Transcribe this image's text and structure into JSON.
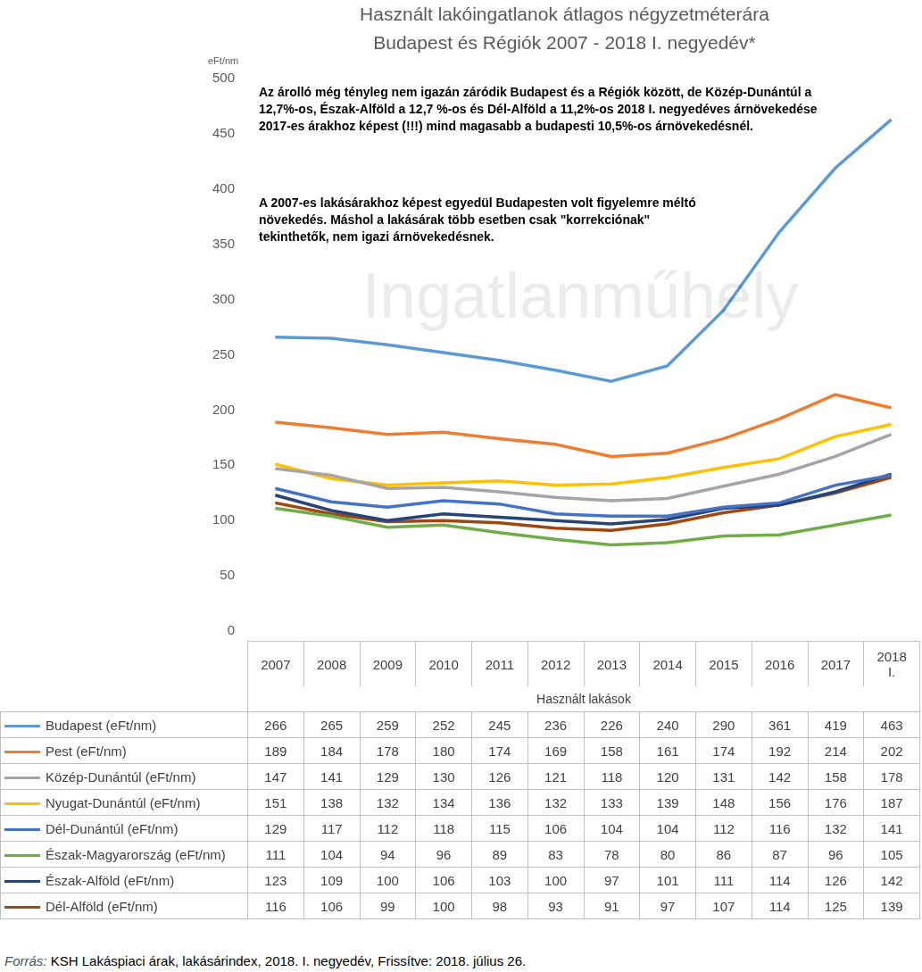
{
  "chart_data": {
    "type": "line",
    "title": "Használt lakóingatlanok átlagos négyzetméterára",
    "subtitle": "Budapest és Régiók 2007 - 2018 I. negyedév*",
    "y_label": "eFt/nm",
    "x_label": "Használt lakások",
    "annotations": [
      "Az árolló még tényleg nem igazán záródik Budapest és a Régiók között, de Közép-Dunántúl a 12,7%-os, Észak-Alföld a 12,7 %-os és Dél-Alföld a 11,2%-os  2018 I. negyedéves árnövekedése 2017-es árakhoz képest (!!!) mind magasabb a budapesti 10,5%-os árnövekedésnél.",
      "A 2007-es lakásárakhoz képest egyedül Budapesten volt figyelemre méltó növekedés. Máshol a lakásárak több esetben csak \"korrekciónak\" tekinthetők, nem igazi  árnövekedésnek."
    ],
    "watermark": "Ingatlanműhely",
    "source_label": "Forrás:",
    "source": "KSH Lakáspiaci árak, lakásárindex, 2018. I. negyedév, Frissítve: 2018. július 26.",
    "categories": [
      "2007",
      "2008",
      "2009",
      "2010",
      "2011",
      "2012",
      "2013",
      "2014",
      "2015",
      "2016",
      "2017",
      "2018 I."
    ],
    "series": [
      {
        "name": "Budapest (eFt/nm)",
        "color": "#5b9bd5",
        "values": [
          266,
          265,
          259,
          252,
          245,
          236,
          226,
          240,
          290,
          361,
          419,
          463
        ]
      },
      {
        "name": "Pest (eFt/nm)",
        "color": "#ed7d31",
        "values": [
          189,
          184,
          178,
          180,
          174,
          169,
          158,
          161,
          174,
          192,
          214,
          202
        ]
      },
      {
        "name": "Közép-Dunántúl (eFt/nm)",
        "color": "#a5a5a5",
        "values": [
          147,
          141,
          129,
          130,
          126,
          121,
          118,
          120,
          131,
          142,
          158,
          178
        ]
      },
      {
        "name": "Nyugat-Dunántúl (eFt/nm)",
        "color": "#ffc000",
        "values": [
          151,
          138,
          132,
          134,
          136,
          132,
          133,
          139,
          148,
          156,
          176,
          187
        ]
      },
      {
        "name": "Dél-Dunántúl (eFt/nm)",
        "color": "#4472c4",
        "values": [
          129,
          117,
          112,
          118,
          115,
          106,
          104,
          104,
          112,
          116,
          132,
          141
        ]
      },
      {
        "name": "Észak-Magyarország (eFt/nm)",
        "color": "#70ad47",
        "values": [
          111,
          104,
          94,
          96,
          89,
          83,
          78,
          80,
          86,
          87,
          96,
          105
        ]
      },
      {
        "name": "Észak-Alföld (eFt/nm)",
        "color": "#264478",
        "values": [
          123,
          109,
          100,
          106,
          103,
          100,
          97,
          101,
          111,
          114,
          126,
          142
        ]
      },
      {
        "name": "Dél-Alföld (eFt/nm)",
        "color": "#9e480e",
        "values": [
          116,
          106,
          99,
          100,
          98,
          93,
          91,
          97,
          107,
          114,
          125,
          139
        ]
      }
    ],
    "ylim": [
      0,
      500
    ],
    "yticks": [
      0,
      50,
      100,
      150,
      200,
      250,
      300,
      350,
      400,
      450,
      500
    ],
    "grid": false
  }
}
